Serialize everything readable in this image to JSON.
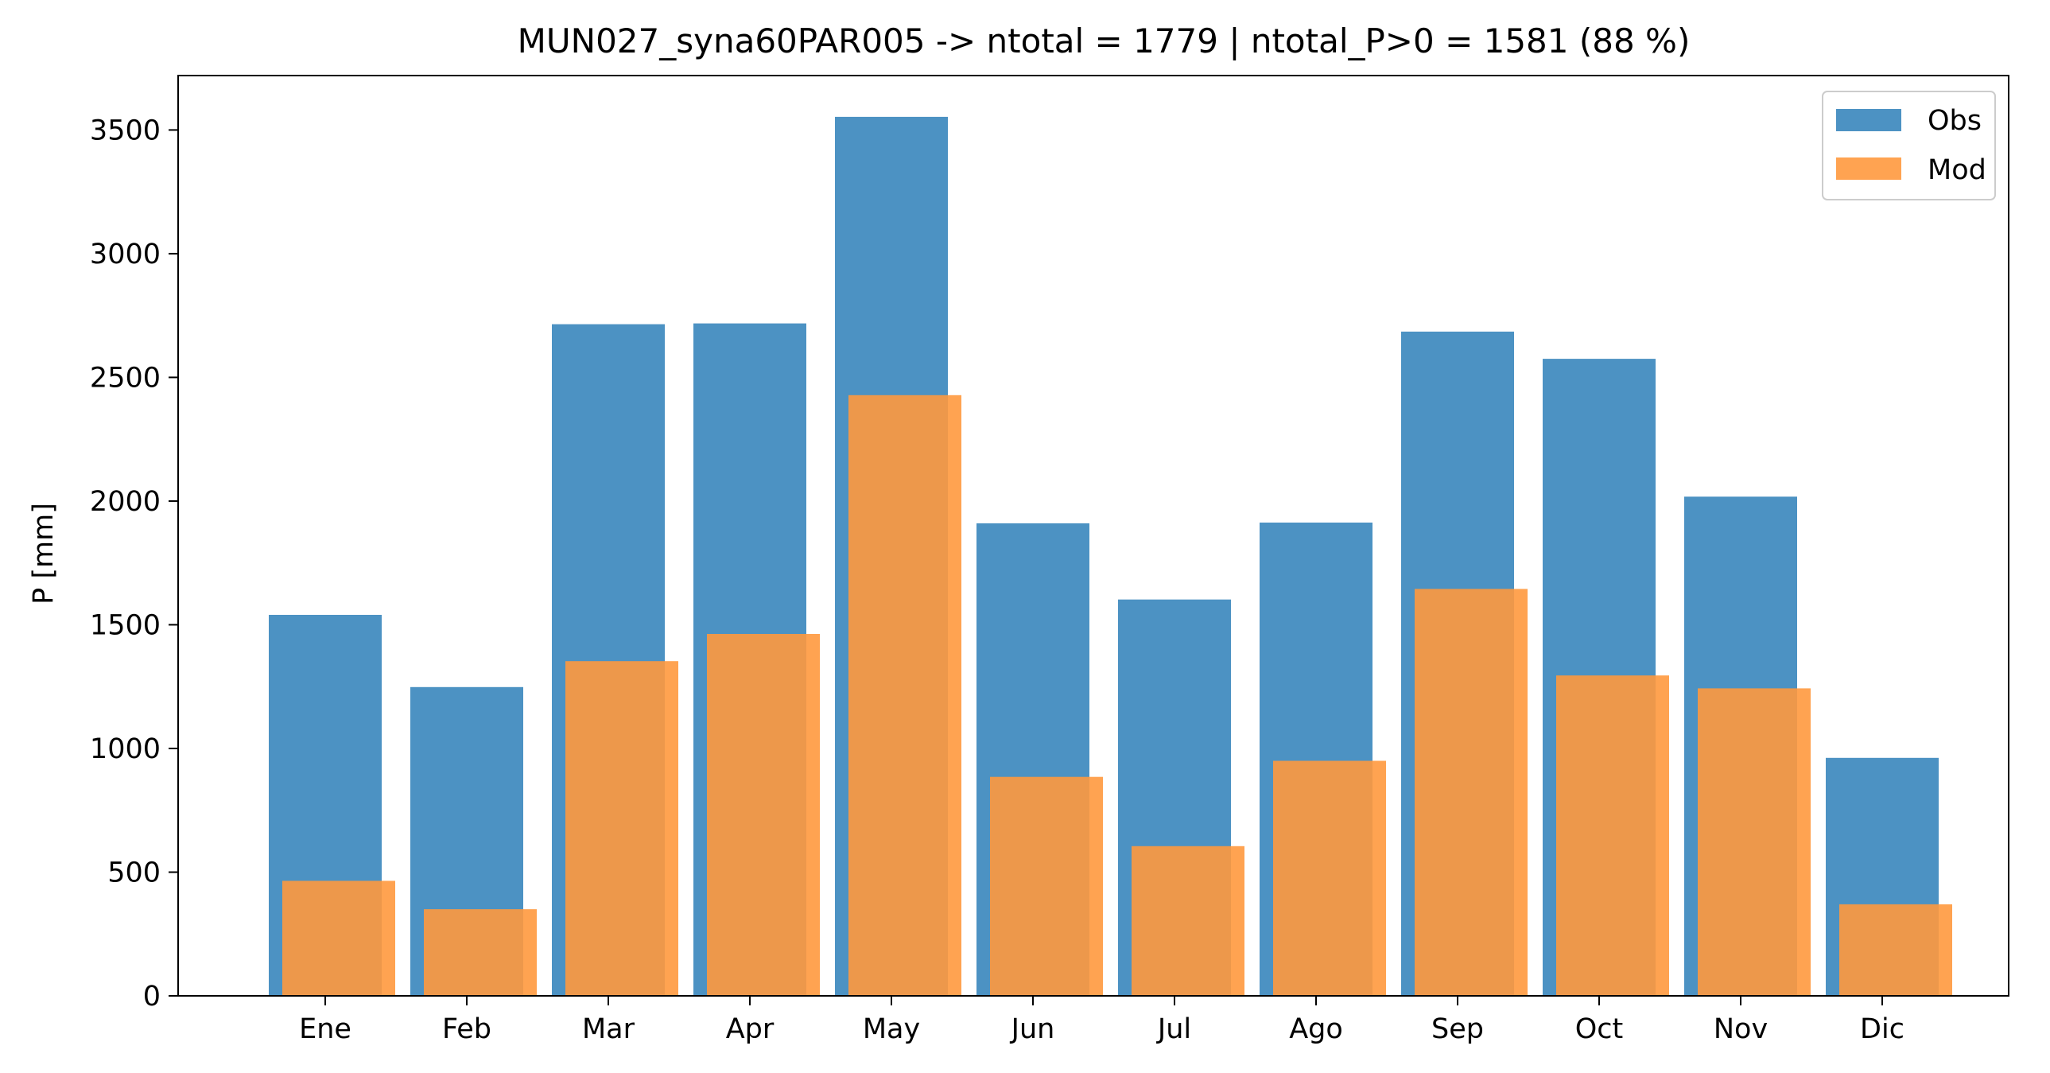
{
  "chart_data": {
    "type": "bar",
    "title": "MUN027_syna60PAR005 -> ntotal = 1779 | ntotal_P>0 = 1581 (88 %)",
    "xlabel": "",
    "ylabel": "P [mm]",
    "ylim": [
      0,
      3720
    ],
    "yticks": [
      0,
      500,
      1000,
      1500,
      2000,
      2500,
      3000,
      3500
    ],
    "categories": [
      "Ene",
      "Feb",
      "Mar",
      "Apr",
      "May",
      "Jun",
      "Jul",
      "Ago",
      "Sep",
      "Oct",
      "Nov",
      "Dic"
    ],
    "series": [
      {
        "name": "Obs",
        "color": "#4c92c3",
        "values": [
          1540,
          1248,
          2715,
          2718,
          3553,
          1910,
          1602,
          1913,
          2685,
          2575,
          2018,
          962
        ]
      },
      {
        "name": "Mod",
        "color": "#ff993e",
        "values": [
          465,
          350,
          1353,
          1463,
          2428,
          885,
          605,
          950,
          1645,
          1295,
          1243,
          370
        ]
      }
    ],
    "grid": false,
    "legend_position": "top-right"
  }
}
